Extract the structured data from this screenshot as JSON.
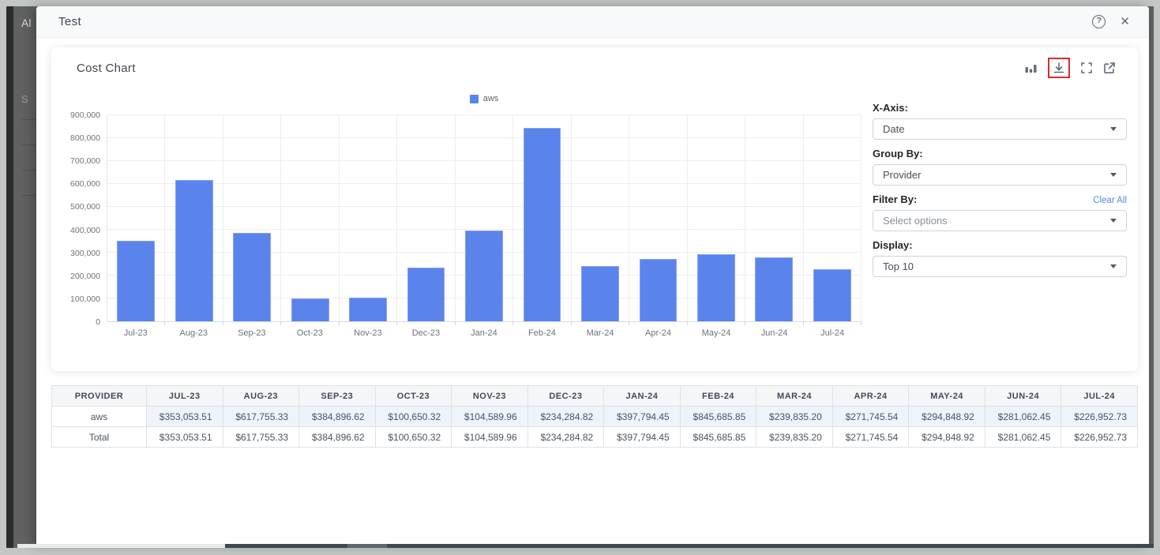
{
  "background": {
    "clipped_text_top": "Al",
    "clipped_text_mid": "S"
  },
  "modal": {
    "title": "Test",
    "help_icon": "?",
    "close_icon": "✕"
  },
  "card": {
    "title": "Cost Chart",
    "toolbar_icons": [
      "bar-chart",
      "download (highlighted red)",
      "fullscreen",
      "open-external"
    ]
  },
  "controls": {
    "x_axis": {
      "label": "X-Axis:",
      "value": "Date"
    },
    "group_by": {
      "label": "Group By:",
      "value": "Provider"
    },
    "filter_by": {
      "label": "Filter By:",
      "clear_all": "Clear All",
      "placeholder": "Select options"
    },
    "display": {
      "label": "Display:",
      "value": "Top 10"
    }
  },
  "chart_data": {
    "type": "bar",
    "title": "Cost Chart",
    "categories": [
      "Jul-23",
      "Aug-23",
      "Sep-23",
      "Oct-23",
      "Nov-23",
      "Dec-23",
      "Jan-24",
      "Feb-24",
      "Mar-24",
      "Apr-24",
      "May-24",
      "Jun-24",
      "Jul-24"
    ],
    "series": [
      {
        "name": "aws",
        "color": "#5b83ec",
        "values": [
          353053.51,
          617755.33,
          384896.62,
          100650.32,
          104589.96,
          234284.82,
          397794.45,
          845685.85,
          239835.2,
          271745.54,
          294848.92,
          281062.45,
          226952.73
        ]
      }
    ],
    "xlabel": "",
    "ylabel": "",
    "ylim": [
      0,
      900000
    ],
    "ytick_step": 100000,
    "grid": true,
    "legend_position": "top-center"
  },
  "table": {
    "columns": [
      "PROVIDER",
      "JUL-23",
      "AUG-23",
      "SEP-23",
      "OCT-23",
      "NOV-23",
      "DEC-23",
      "JAN-24",
      "FEB-24",
      "MAR-24",
      "APR-24",
      "MAY-24",
      "JUN-24",
      "JUL-24"
    ],
    "rows": [
      {
        "provider": "aws",
        "values": [
          "$353,053.51",
          "$617,755.33",
          "$384,896.62",
          "$100,650.32",
          "$104,589.96",
          "$234,284.82",
          "$397,794.45",
          "$845,685.85",
          "$239,835.20",
          "$271,745.54",
          "$294,848.92",
          "$281,062.45",
          "$226,952.73"
        ]
      },
      {
        "provider": "Total",
        "values": [
          "$353,053.51",
          "$617,755.33",
          "$384,896.62",
          "$100,650.32",
          "$104,589.96",
          "$234,284.82",
          "$397,794.45",
          "$845,685.85",
          "$239,835.20",
          "$271,745.54",
          "$294,848.92",
          "$281,062.45",
          "$226,952.73"
        ]
      }
    ]
  },
  "colors": {
    "bar": "#5b83ec",
    "accent_link": "#4b8bf4",
    "annotation_box": "#d92b2f",
    "icon_gray": "#5f6b7a"
  }
}
